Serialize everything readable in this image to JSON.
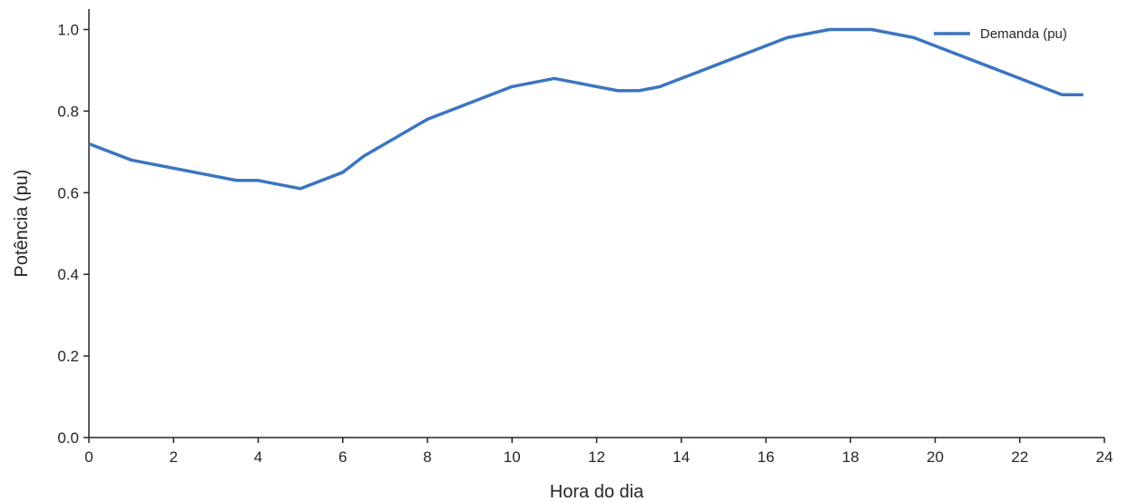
{
  "chart_data": {
    "type": "line",
    "title": "",
    "xlabel": "Hora do dia",
    "ylabel": "Potência (pu)",
    "xlim": [
      0,
      24
    ],
    "ylim": [
      0,
      1.05
    ],
    "xticks": [
      0,
      2,
      4,
      6,
      8,
      10,
      12,
      14,
      16,
      18,
      20,
      22,
      24
    ],
    "xtick_labels": [
      "0",
      "2",
      "4",
      "6",
      "8",
      "10",
      "12",
      "14",
      "16",
      "18",
      "20",
      "22",
      "24"
    ],
    "yticks": [
      0.0,
      0.2,
      0.4,
      0.6,
      0.8,
      1.0
    ],
    "ytick_labels": [
      "0.0",
      "0.2",
      "0.4",
      "0.6",
      "0.8",
      "1.0"
    ],
    "grid": false,
    "legend": "top-right",
    "series": [
      {
        "name": "Demanda (pu)",
        "color": "#3b75c0",
        "x": [
          0,
          1,
          2,
          3,
          3.5,
          4,
          5,
          6,
          6.5,
          7,
          8,
          9,
          10,
          11,
          12,
          12.5,
          13,
          13.5,
          14,
          15,
          16,
          16.5,
          17,
          17.5,
          18,
          18.5,
          19,
          19.5,
          20,
          21,
          22,
          23,
          23.5
        ],
        "y": [
          0.72,
          0.68,
          0.66,
          0.64,
          0.63,
          0.63,
          0.61,
          0.65,
          0.69,
          0.72,
          0.78,
          0.82,
          0.86,
          0.88,
          0.86,
          0.85,
          0.85,
          0.86,
          0.88,
          0.92,
          0.96,
          0.98,
          0.99,
          1.0,
          1.0,
          1.0,
          0.99,
          0.98,
          0.96,
          0.92,
          0.88,
          0.84,
          0.84
        ]
      }
    ]
  }
}
